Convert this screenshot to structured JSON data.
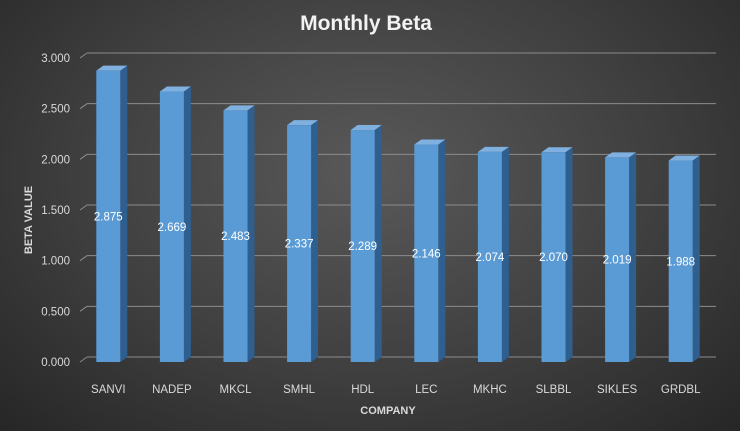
{
  "chart_data": {
    "type": "bar",
    "title": "Monthly Beta",
    "xlabel": "COMPANY",
    "ylabel": "BETA VALUE",
    "categories": [
      "SANVI",
      "NADEP",
      "MKCL",
      "SMHL",
      "HDL",
      "LEC",
      "MKHC",
      "SLBBL",
      "SIKLES",
      "GRDBL"
    ],
    "values": [
      2.875,
      2.669,
      2.483,
      2.337,
      2.289,
      2.146,
      2.074,
      2.07,
      2.019,
      1.988
    ],
    "value_labels": [
      "2.875",
      "2.669",
      "2.483",
      "2.337",
      "2.289",
      "2.146",
      "2.074",
      "2.070",
      "2.019",
      "1.988"
    ],
    "yticks": [
      "0.000",
      "0.500",
      "1.000",
      "1.500",
      "2.000",
      "2.500",
      "3.000"
    ],
    "ylim": [
      0,
      3
    ],
    "grid": true,
    "bar_style": "3d-column",
    "colors": {
      "bar_front": "#5b9bd5",
      "bar_side": "#2f5f8f",
      "bar_top": "#7fb0e0",
      "gridline": "#8c8c8c",
      "text": "#d9d9d9",
      "title": "#f2f2f2"
    }
  }
}
